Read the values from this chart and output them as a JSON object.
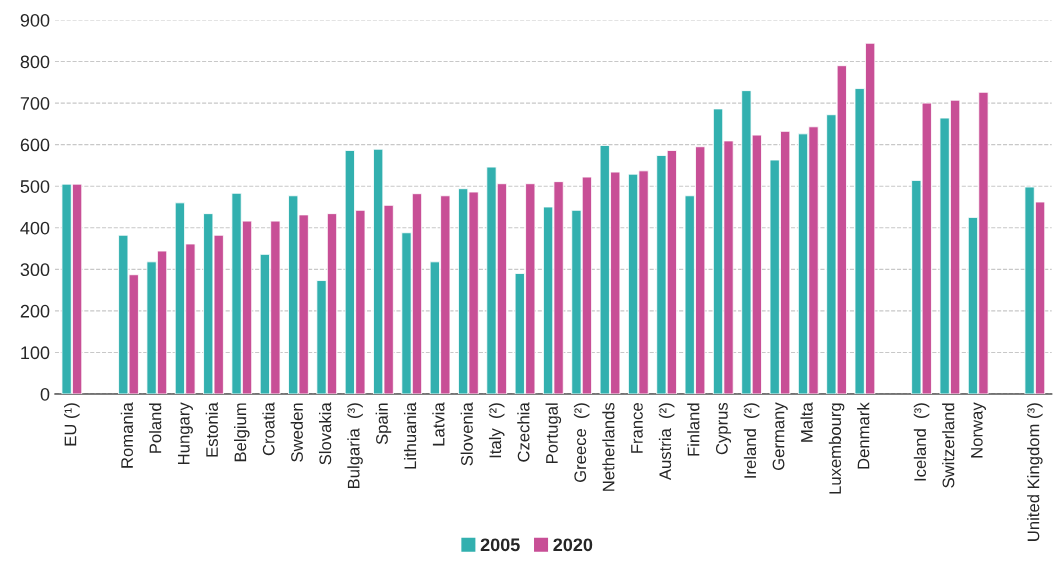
{
  "chart_data": {
    "type": "bar",
    "categories": [
      "EU (¹)",
      null,
      "Romania",
      "Poland",
      "Hungary",
      "Estonia",
      "Belgium",
      "Croatia",
      "Sweden",
      "Slovakia",
      "Bulgaria  (³)",
      "Spain",
      "Lithuania",
      "Latvia",
      "Slovenia",
      "Italy  (²)",
      "Czechia",
      "Portugal",
      "Greece  (²)",
      "Netherlands",
      "France",
      "Austria  (²)",
      "Finland",
      "Cyprus",
      "Ireland  (²)",
      "Germany",
      "Malta",
      "Luxembourg",
      "Denmark",
      null,
      "Iceland  (³)",
      "Switzerland",
      "Norway",
      null,
      "United Kingdom (³)"
    ],
    "series": [
      {
        "name": "2005",
        "color": "#32b0af",
        "values": [
          505,
          null,
          382,
          318,
          460,
          434,
          483,
          336,
          477,
          273,
          586,
          589,
          388,
          318,
          494,
          546,
          290,
          450,
          442,
          598,
          529,
          574,
          477,
          686,
          730,
          563,
          626,
          672,
          735,
          null,
          514,
          664,
          425,
          null,
          498
        ]
      },
      {
        "name": "2020",
        "color": "#c84f96",
        "values": [
          505,
          null,
          287,
          344,
          361,
          382,
          416,
          416,
          431,
          434,
          442,
          454,
          482,
          477,
          486,
          506,
          506,
          511,
          522,
          534,
          537,
          586,
          595,
          609,
          623,
          632,
          643,
          790,
          844,
          null,
          700,
          707,
          726,
          null,
          462
        ]
      }
    ],
    "ylim": [
      0,
      900
    ],
    "yticks": [
      0,
      100,
      200,
      300,
      400,
      500,
      600,
      700,
      800,
      900
    ],
    "grid": "y",
    "legend": "bottom"
  }
}
